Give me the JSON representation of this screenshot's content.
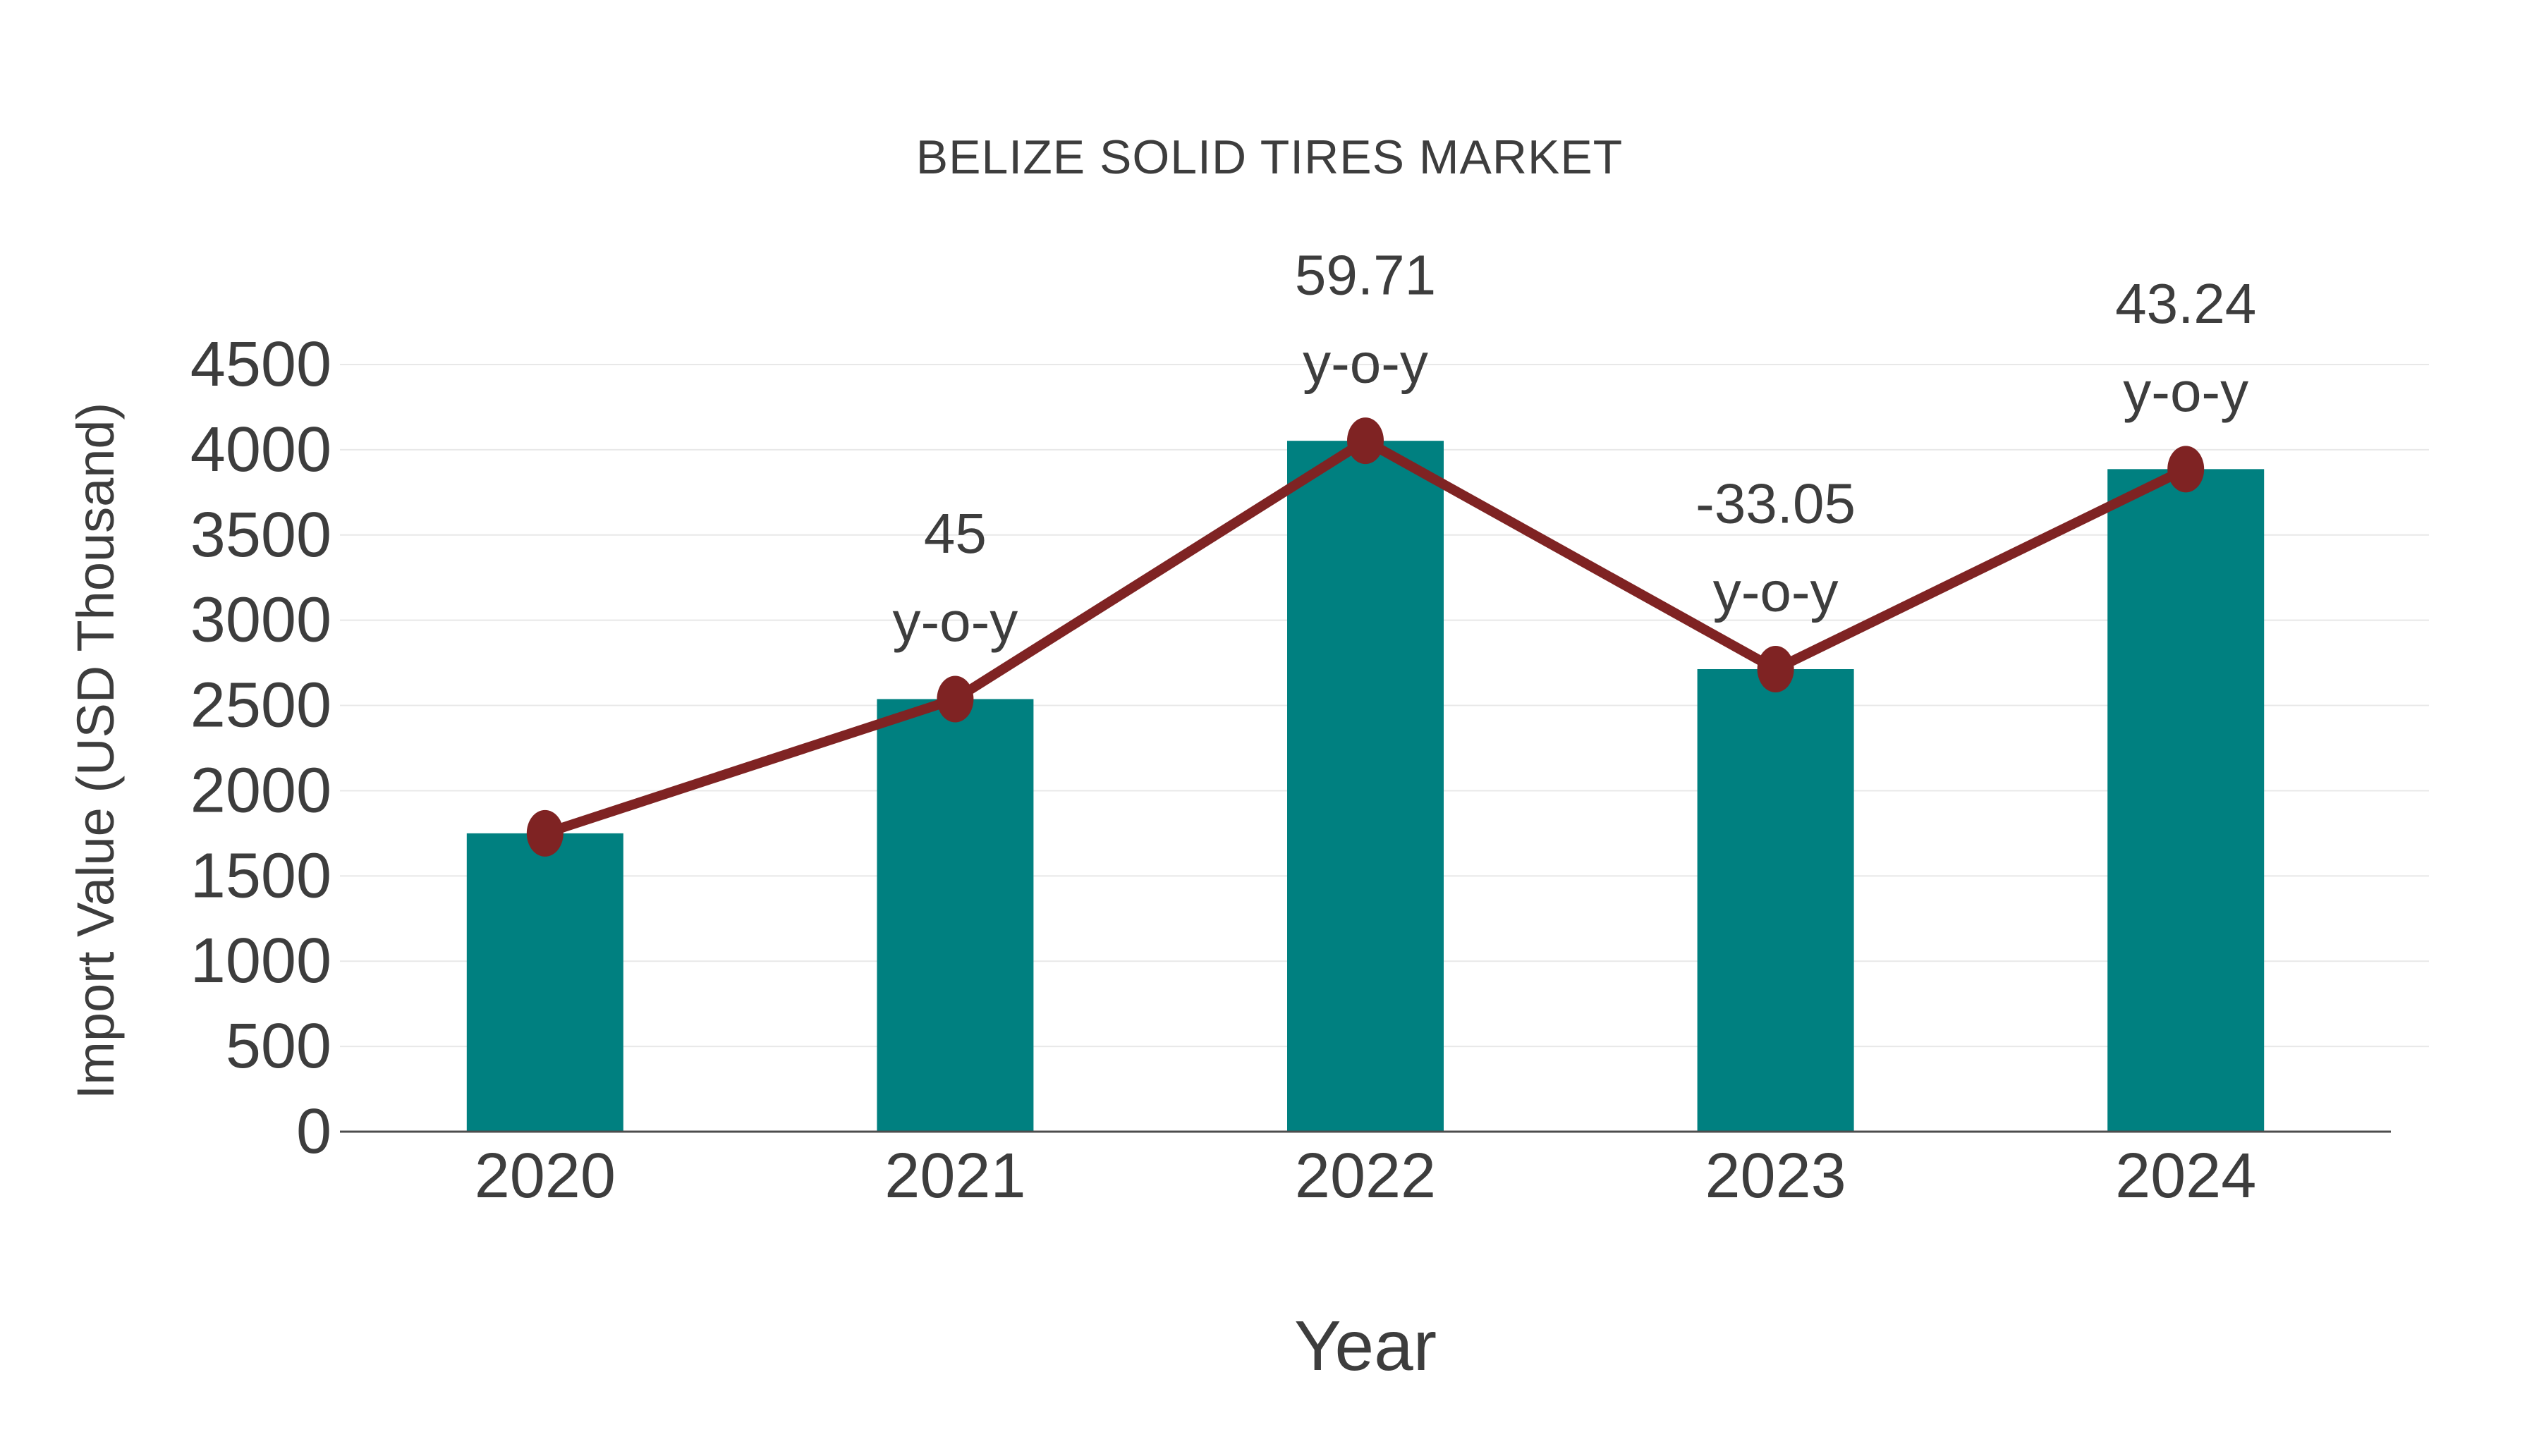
{
  "chart_data": {
    "type": "bar",
    "title": "BELIZE SOLID TIRES MARKET",
    "xlabel": "Year",
    "ylabel": "Import Value (USD Thousand)",
    "categories": [
      "2020",
      "2021",
      "2022",
      "2023",
      "2024"
    ],
    "series": [
      {
        "name": "Import Value",
        "type": "bar",
        "color": "#008080",
        "values": [
          1750,
          2537.5,
          4052.6,
          2713.2,
          3886.5
        ]
      },
      {
        "name": "Import Value trend",
        "type": "line",
        "color": "#7f2323",
        "marker_color": "#7f2323",
        "values": [
          1750,
          2537.5,
          4052.6,
          2713.2,
          3886.5
        ]
      }
    ],
    "annotations": [
      {
        "category": "2021",
        "value_text": "45",
        "suffix_text": "y-o-y"
      },
      {
        "category": "2022",
        "value_text": "59.71",
        "suffix_text": "y-o-y"
      },
      {
        "category": "2023",
        "value_text": "-33.05",
        "suffix_text": "y-o-y"
      },
      {
        "category": "2024",
        "value_text": "43.24",
        "suffix_text": "y-o-y"
      }
    ],
    "yticks": [
      0,
      500,
      1000,
      1500,
      2000,
      2500,
      3000,
      3500,
      4000,
      4500
    ],
    "ylim": [
      0,
      4500
    ],
    "grid": true,
    "legend_position": "none",
    "colors": {
      "bar": "#008080",
      "line": "#7f2323",
      "gridline": "#e8e8e8",
      "axis_line": "#4d4d4d",
      "text": "#3d3d3d",
      "background": "#ffffff"
    }
  }
}
